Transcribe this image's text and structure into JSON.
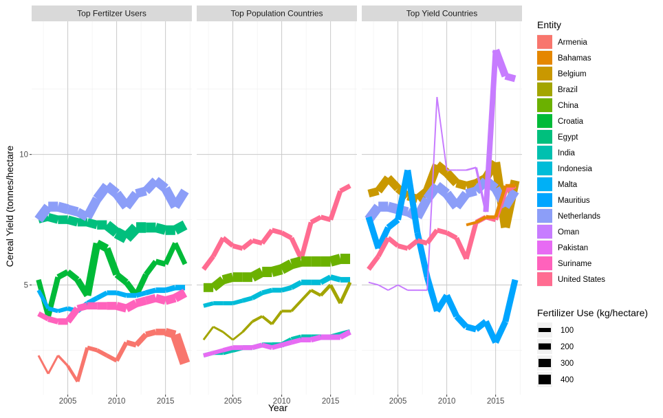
{
  "chart_data": {
    "type": "line",
    "xlabel": "Year",
    "ylabel": "Cereal Yield (tonnes/hectare",
    "xlim": [
      2001.3,
      2017.7
    ],
    "ylim": [
      0.8,
      15.1
    ],
    "x_ticks": [
      2005,
      2010,
      2015
    ],
    "y_ticks": [
      5,
      10
    ],
    "grid": true,
    "legend_position": "right",
    "facets": [
      "Top Fertilzer Users",
      "Top Population Countries",
      "Top Yield Countries"
    ],
    "colour_legend": {
      "title": "Entity",
      "entries": [
        {
          "name": "Armenia",
          "color": "#F8766D"
        },
        {
          "name": "Bahamas",
          "color": "#E58700"
        },
        {
          "name": "Belgium",
          "color": "#C99800"
        },
        {
          "name": "Brazil",
          "color": "#A3A500"
        },
        {
          "name": "China",
          "color": "#6BB100"
        },
        {
          "name": "Croatia",
          "color": "#00BA38"
        },
        {
          "name": "Egypt",
          "color": "#00BF7D"
        },
        {
          "name": "India",
          "color": "#00C0AF"
        },
        {
          "name": "Indonesia",
          "color": "#00BCD8"
        },
        {
          "name": "Malta",
          "color": "#00B0F6"
        },
        {
          "name": "Mauritius",
          "color": "#00A5FF"
        },
        {
          "name": "Netherlands",
          "color": "#8C9EF8"
        },
        {
          "name": "Oman",
          "color": "#C77CFF"
        },
        {
          "name": "Pakistan",
          "color": "#E76BF3"
        },
        {
          "name": "Suriname",
          "color": "#FF62BC"
        },
        {
          "name": "United States",
          "color": "#FF6C91"
        }
      ]
    },
    "size_legend": {
      "title": "Fertilizer Use (kg/hectare)",
      "entries": [
        100,
        200,
        300,
        400
      ]
    },
    "series": [
      {
        "facet": 0,
        "name": "Armenia",
        "x": [
          2002,
          2003,
          2004,
          2005,
          2006,
          2007,
          2008,
          2009,
          2010,
          2011,
          2012,
          2013,
          2014,
          2015,
          2016,
          2017
        ],
        "y": [
          2.3,
          1.6,
          2.3,
          1.9,
          1.3,
          2.6,
          2.5,
          2.3,
          2.1,
          2.8,
          2.7,
          3.1,
          3.2,
          3.2,
          3.1,
          2.0
        ],
        "w": [
          3,
          3,
          3,
          4,
          5,
          6,
          6,
          6,
          6,
          7,
          8,
          8,
          9,
          10,
          14,
          16
        ]
      },
      {
        "facet": 0,
        "name": "Croatia",
        "x": [
          2002,
          2003,
          2004,
          2005,
          2006,
          2007,
          2008,
          2009,
          2010,
          2011,
          2012,
          2013,
          2014,
          2015,
          2016,
          2017
        ],
        "y": [
          5.2,
          3.8,
          5.3,
          5.5,
          5.2,
          4.6,
          6.6,
          6.4,
          5.4,
          5.1,
          4.6,
          5.4,
          5.9,
          5.8,
          6.6,
          5.8
        ],
        "w": [
          7,
          8,
          8,
          9,
          9,
          10,
          12,
          11,
          10,
          9,
          9,
          8,
          8,
          8,
          7,
          7
        ]
      },
      {
        "facet": 0,
        "name": "Egypt",
        "x": [
          2002,
          2003,
          2004,
          2005,
          2006,
          2007,
          2008,
          2009,
          2010,
          2011,
          2012,
          2013,
          2014,
          2015,
          2016,
          2017
        ],
        "y": [
          7.5,
          7.6,
          7.5,
          7.5,
          7.4,
          7.4,
          7.3,
          7.3,
          7.0,
          6.8,
          7.2,
          7.2,
          7.2,
          7.1,
          7.1,
          7.3
        ],
        "w": [
          10,
          12,
          12,
          13,
          12,
          12,
          13,
          14,
          16,
          17,
          16,
          15,
          14,
          14,
          14,
          15
        ]
      },
      {
        "facet": 0,
        "name": "Netherlands",
        "x": [
          2002,
          2003,
          2004,
          2005,
          2006,
          2007,
          2008,
          2009,
          2010,
          2011,
          2012,
          2013,
          2014,
          2015,
          2016,
          2017
        ],
        "y": [
          7.5,
          8.0,
          8.0,
          7.9,
          7.8,
          7.6,
          8.3,
          8.8,
          8.5,
          8.0,
          8.5,
          8.6,
          9.0,
          8.7,
          8.0,
          8.6
        ],
        "w": [
          14,
          14,
          15,
          14,
          13,
          13,
          14,
          14,
          14,
          14,
          13,
          13,
          13,
          14,
          13,
          13
        ]
      },
      {
        "facet": 0,
        "name": "Malta",
        "x": [
          2002,
          2003,
          2004,
          2005,
          2006,
          2007,
          2008,
          2009,
          2010,
          2011,
          2012,
          2013,
          2014,
          2015,
          2016,
          2017
        ],
        "y": [
          4.8,
          4.1,
          4.0,
          4.1,
          4.0,
          4.3,
          4.5,
          4.7,
          4.7,
          4.6,
          4.6,
          4.7,
          4.8,
          4.8,
          4.9,
          4.9
        ],
        "w": [
          5,
          6,
          6,
          6,
          7,
          7,
          7,
          7,
          7,
          7,
          7,
          7,
          8,
          8,
          8,
          8
        ]
      },
      {
        "facet": 0,
        "name": "Suriname",
        "x": [
          2002,
          2003,
          2004,
          2005,
          2006,
          2007,
          2008,
          2009,
          2010,
          2011,
          2012,
          2013,
          2014,
          2015,
          2016,
          2017
        ],
        "y": [
          3.9,
          3.7,
          3.6,
          3.6,
          4.1,
          4.2,
          4.2,
          4.2,
          4.2,
          4.1,
          4.3,
          4.4,
          4.5,
          4.4,
          4.5,
          4.7
        ],
        "w": [
          7,
          8,
          9,
          10,
          10,
          10,
          11,
          11,
          12,
          12,
          12,
          12,
          12,
          12,
          13,
          13
        ]
      },
      {
        "facet": 1,
        "name": "United States",
        "x": [
          2002,
          2003,
          2004,
          2005,
          2006,
          2007,
          2008,
          2009,
          2010,
          2011,
          2012,
          2013,
          2014,
          2015,
          2016,
          2017
        ],
        "y": [
          5.6,
          6.1,
          6.8,
          6.5,
          6.4,
          6.7,
          6.6,
          7.1,
          7.0,
          6.8,
          6.0,
          7.4,
          7.6,
          7.5,
          8.6,
          8.8
        ],
        "w": [
          7,
          7,
          7,
          7,
          7,
          7,
          7,
          7,
          7,
          7,
          7,
          7,
          7,
          7,
          7,
          7
        ]
      },
      {
        "facet": 1,
        "name": "China",
        "x": [
          2002,
          2003,
          2004,
          2005,
          2006,
          2007,
          2008,
          2009,
          2010,
          2011,
          2012,
          2013,
          2014,
          2015,
          2016,
          2017
        ],
        "y": [
          4.9,
          4.9,
          5.2,
          5.3,
          5.3,
          5.3,
          5.5,
          5.5,
          5.6,
          5.8,
          5.9,
          5.9,
          5.9,
          5.9,
          6.0,
          6.0
        ],
        "w": [
          13,
          13,
          13,
          14,
          14,
          14,
          15,
          15,
          15,
          15,
          15,
          15,
          15,
          15,
          15,
          15
        ]
      },
      {
        "facet": 1,
        "name": "Indonesia",
        "x": [
          2002,
          2003,
          2004,
          2005,
          2006,
          2007,
          2008,
          2009,
          2010,
          2011,
          2012,
          2013,
          2014,
          2015,
          2016,
          2017
        ],
        "y": [
          4.2,
          4.3,
          4.3,
          4.3,
          4.4,
          4.5,
          4.7,
          4.8,
          4.8,
          4.9,
          5.1,
          5.1,
          5.1,
          5.3,
          5.2,
          5.2
        ],
        "w": [
          6,
          6,
          6,
          6,
          6,
          7,
          7,
          7,
          7,
          7,
          8,
          8,
          8,
          8,
          8,
          8
        ]
      },
      {
        "facet": 1,
        "name": "Brazil",
        "x": [
          2002,
          2003,
          2004,
          2005,
          2006,
          2007,
          2008,
          2009,
          2010,
          2011,
          2012,
          2013,
          2014,
          2015,
          2016,
          2017
        ],
        "y": [
          2.9,
          3.4,
          3.2,
          2.9,
          3.2,
          3.6,
          3.8,
          3.5,
          4.0,
          4.0,
          4.4,
          4.8,
          4.6,
          5.0,
          4.3,
          5.1
        ],
        "w": [
          3,
          3,
          3,
          3,
          3,
          4,
          4,
          4,
          4,
          4,
          4,
          4,
          5,
          5,
          5,
          5
        ]
      },
      {
        "facet": 1,
        "name": "India",
        "x": [
          2002,
          2003,
          2004,
          2005,
          2006,
          2007,
          2008,
          2009,
          2010,
          2011,
          2012,
          2013,
          2014,
          2015,
          2016,
          2017
        ],
        "y": [
          2.3,
          2.4,
          2.4,
          2.5,
          2.6,
          2.6,
          2.7,
          2.7,
          2.7,
          2.9,
          3.0,
          3.0,
          3.0,
          3.0,
          3.1,
          3.2
        ],
        "w": [
          6,
          6,
          6,
          7,
          7,
          7,
          7,
          8,
          8,
          8,
          8,
          8,
          8,
          8,
          8,
          8
        ]
      },
      {
        "facet": 1,
        "name": "Pakistan",
        "x": [
          2002,
          2003,
          2004,
          2005,
          2006,
          2007,
          2008,
          2009,
          2010,
          2011,
          2012,
          2013,
          2014,
          2015,
          2016,
          2017
        ],
        "y": [
          2.3,
          2.4,
          2.5,
          2.6,
          2.6,
          2.6,
          2.7,
          2.6,
          2.7,
          2.8,
          2.9,
          2.9,
          3.0,
          3.0,
          3.0,
          3.2
        ],
        "w": [
          6,
          6,
          6,
          7,
          7,
          7,
          7,
          7,
          7,
          7,
          7,
          8,
          8,
          8,
          8,
          8
        ]
      },
      {
        "facet": 2,
        "name": "Belgium",
        "x": [
          2002,
          2003,
          2004,
          2005,
          2006,
          2007,
          2008,
          2009,
          2010,
          2011,
          2012,
          2013,
          2014,
          2015,
          2016,
          2017
        ],
        "y": [
          8.5,
          8.6,
          9.1,
          8.7,
          8.4,
          8.3,
          8.6,
          9.6,
          9.3,
          8.9,
          8.8,
          8.9,
          9.1,
          9.7,
          7.2,
          9.0
        ],
        "w": [
          11,
          12,
          12,
          12,
          12,
          12,
          13,
          13,
          13,
          13,
          12,
          12,
          12,
          13,
          13,
          13
        ]
      },
      {
        "facet": 2,
        "name": "Netherlands",
        "x": [
          2002,
          2003,
          2004,
          2005,
          2006,
          2007,
          2008,
          2009,
          2010,
          2011,
          2012,
          2013,
          2014,
          2015,
          2016,
          2017
        ],
        "y": [
          7.5,
          8.0,
          8.0,
          7.9,
          7.8,
          7.6,
          8.3,
          8.8,
          8.5,
          8.0,
          8.5,
          8.6,
          9.0,
          8.7,
          8.0,
          8.6
        ],
        "w": [
          14,
          14,
          15,
          14,
          13,
          13,
          14,
          14,
          14,
          14,
          13,
          13,
          13,
          14,
          13,
          13
        ]
      },
      {
        "facet": 2,
        "name": "Mauritius",
        "x": [
          2002,
          2003,
          2004,
          2005,
          2006,
          2007,
          2008,
          2009,
          2010,
          2011,
          2012,
          2013,
          2014,
          2015,
          2016,
          2017
        ],
        "y": [
          7.6,
          6.4,
          7.2,
          7.5,
          9.4,
          7.0,
          5.3,
          4.0,
          4.6,
          3.8,
          3.4,
          3.3,
          3.6,
          2.8,
          3.6,
          5.2
        ],
        "w": [
          9,
          9,
          9,
          9,
          9,
          9,
          9,
          9,
          9,
          9,
          9,
          9,
          9,
          9,
          9,
          9
        ]
      },
      {
        "facet": 2,
        "name": "Oman",
        "x": [
          2002,
          2003,
          2004,
          2005,
          2006,
          2007,
          2008,
          2009,
          2010,
          2011,
          2012,
          2013,
          2014,
          2015,
          2016,
          2017
        ],
        "y": [
          5.1,
          5.0,
          4.8,
          5.0,
          4.8,
          4.8,
          4.8,
          12.2,
          9.4,
          9.4,
          9.4,
          9.5,
          7.8,
          14.0,
          13.0,
          12.9
        ],
        "w": [
          2,
          2,
          2,
          2,
          2,
          2,
          2,
          2,
          2,
          2,
          2,
          3,
          4,
          12,
          10,
          10
        ]
      },
      {
        "facet": 2,
        "name": "United States",
        "x": [
          2002,
          2003,
          2004,
          2005,
          2006,
          2007,
          2008,
          2009,
          2010,
          2011,
          2012,
          2013,
          2014,
          2015,
          2016,
          2017
        ],
        "y": [
          5.6,
          6.1,
          6.8,
          6.5,
          6.4,
          6.7,
          6.6,
          7.1,
          7.0,
          6.8,
          6.0,
          7.4,
          7.6,
          7.5,
          8.6,
          8.8
        ],
        "w": [
          7,
          7,
          7,
          7,
          7,
          7,
          7,
          7,
          7,
          7,
          7,
          7,
          7,
          7,
          7,
          7
        ]
      },
      {
        "facet": 2,
        "name": "Bahamas",
        "x": [
          2012,
          2013,
          2014,
          2015,
          2016,
          2017
        ],
        "y": [
          7.3,
          7.4,
          7.6,
          7.6,
          8.8,
          8.8
        ],
        "w": [
          4,
          4,
          5,
          5,
          5,
          5
        ]
      }
    ]
  }
}
